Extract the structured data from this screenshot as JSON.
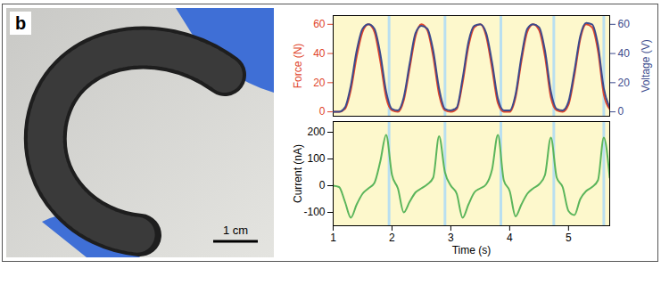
{
  "panel_label": "b",
  "scale_bar": "1 cm",
  "chart_data": [
    {
      "type": "line",
      "ylabel": "Force (N)",
      "y2label": "Voltage (V)",
      "x": [
        1.0,
        1.1,
        1.2,
        1.3,
        1.4,
        1.5,
        1.6,
        1.7,
        1.8,
        1.9,
        2.0,
        2.1,
        2.2,
        2.3,
        2.4,
        2.5,
        2.6,
        2.7,
        2.8,
        2.9,
        3.0,
        3.1,
        3.2,
        3.3,
        3.4,
        3.5,
        3.6,
        3.7,
        3.8,
        3.9,
        4.0,
        4.1,
        4.2,
        4.3,
        4.4,
        4.5,
        4.6,
        4.7,
        4.8,
        4.9,
        5.0,
        5.1,
        5.2,
        5.3,
        5.4,
        5.5,
        5.6,
        5.7
      ],
      "series": [
        {
          "color": "#e0452b",
          "values": [
            0,
            0,
            2,
            15,
            38,
            55,
            60,
            55,
            35,
            10,
            1,
            0,
            8,
            30,
            52,
            60,
            56,
            38,
            12,
            1,
            0,
            2,
            20,
            45,
            58,
            60,
            52,
            30,
            6,
            0,
            0,
            10,
            35,
            55,
            60,
            56,
            38,
            10,
            1,
            0,
            5,
            25,
            50,
            60,
            58,
            42,
            12,
            2
          ]
        },
        {
          "color": "#3c4a8c",
          "axis": "y2",
          "values": [
            0,
            0,
            3,
            18,
            42,
            57,
            60,
            57,
            40,
            14,
            2,
            1,
            10,
            33,
            54,
            59,
            57,
            42,
            16,
            2,
            1,
            3,
            23,
            48,
            59,
            60,
            54,
            34,
            9,
            1,
            1,
            12,
            38,
            57,
            60,
            58,
            42,
            14,
            2,
            1,
            7,
            28,
            52,
            61,
            60,
            46,
            16,
            3
          ]
        }
      ],
      "xlim": [
        1,
        5.7
      ],
      "ylim": [
        -3,
        66
      ],
      "yticks": [
        0,
        20,
        40,
        60
      ],
      "y2lim": [
        -3,
        66
      ],
      "y2ticks": [
        0,
        20,
        40,
        60
      ],
      "vlines": [
        1.95,
        2.9,
        3.85,
        4.75,
        5.6
      ],
      "grid": false,
      "tick_labels": "y"
    },
    {
      "type": "line",
      "xlabel": "Time (s)",
      "ylabel": "Current (nA)",
      "x": [
        1.0,
        1.1,
        1.2,
        1.3,
        1.4,
        1.5,
        1.6,
        1.7,
        1.8,
        1.9,
        2.0,
        2.1,
        2.2,
        2.3,
        2.4,
        2.5,
        2.6,
        2.7,
        2.8,
        2.9,
        3.0,
        3.1,
        3.2,
        3.3,
        3.4,
        3.5,
        3.6,
        3.7,
        3.8,
        3.9,
        4.0,
        4.1,
        4.2,
        4.3,
        4.4,
        4.5,
        4.6,
        4.7,
        4.8,
        4.9,
        5.0,
        5.1,
        5.2,
        5.3,
        5.4,
        5.5,
        5.6,
        5.7
      ],
      "series": [
        {
          "color": "#5bb55b",
          "values": [
            0,
            -5,
            -60,
            -120,
            -70,
            -30,
            -10,
            10,
            90,
            190,
            40,
            -10,
            -100,
            -60,
            -25,
            -10,
            5,
            30,
            185,
            50,
            0,
            -30,
            -120,
            -70,
            -25,
            -10,
            5,
            60,
            190,
            20,
            -20,
            -115,
            -70,
            -30,
            -10,
            5,
            40,
            180,
            30,
            -5,
            -95,
            -110,
            -50,
            -20,
            -5,
            20,
            180,
            30
          ]
        }
      ],
      "xlim": [
        1,
        5.7
      ],
      "xticks": [
        1,
        2,
        3,
        4,
        5
      ],
      "ylim": [
        -150,
        240
      ],
      "yticks": [
        -100,
        0,
        100,
        200
      ],
      "vlines": [
        1.95,
        2.9,
        3.85,
        4.75,
        5.6
      ],
      "grid": false
    }
  ]
}
